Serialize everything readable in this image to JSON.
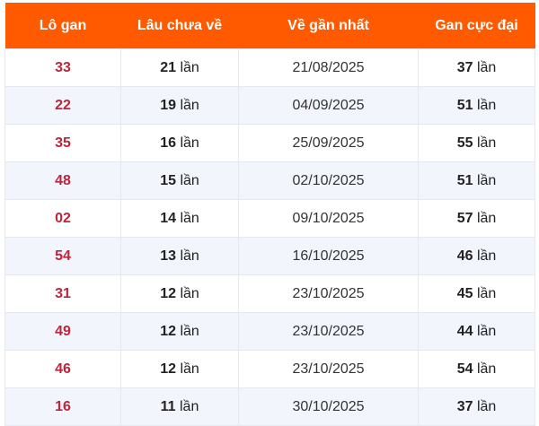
{
  "headers": [
    "Lô gan",
    "Lâu chưa về",
    "Về gần nhất",
    "Gan cực đại"
  ],
  "unit": "lần",
  "rows": [
    {
      "num": "33",
      "since": "21",
      "last": "21/08/2025",
      "max": "37"
    },
    {
      "num": "22",
      "since": "19",
      "last": "04/09/2025",
      "max": "51"
    },
    {
      "num": "35",
      "since": "16",
      "last": "25/09/2025",
      "max": "55"
    },
    {
      "num": "48",
      "since": "15",
      "last": "02/10/2025",
      "max": "51"
    },
    {
      "num": "02",
      "since": "14",
      "last": "09/10/2025",
      "max": "57"
    },
    {
      "num": "54",
      "since": "13",
      "last": "16/10/2025",
      "max": "46"
    },
    {
      "num": "31",
      "since": "12",
      "last": "23/10/2025",
      "max": "45"
    },
    {
      "num": "49",
      "since": "12",
      "last": "23/10/2025",
      "max": "44"
    },
    {
      "num": "46",
      "since": "12",
      "last": "23/10/2025",
      "max": "54"
    },
    {
      "num": "16",
      "since": "11",
      "last": "30/10/2025",
      "max": "37"
    }
  ],
  "colors": {
    "header": "#ff5a00",
    "number": "#c0243a",
    "stripe": "#f3f5fd"
  }
}
